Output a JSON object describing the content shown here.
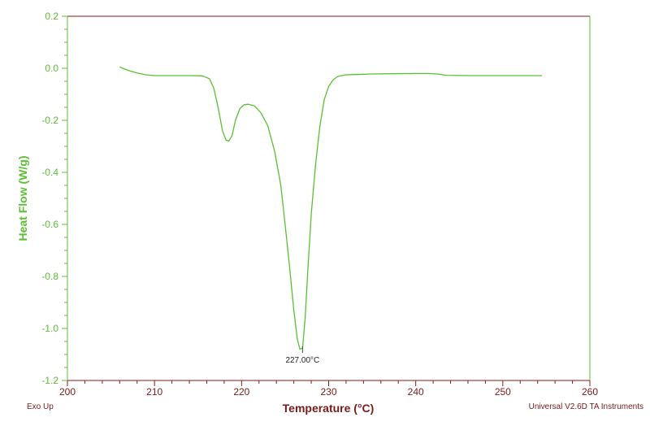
{
  "chart_data": {
    "type": "line",
    "xlabel": "Temperature (°C)",
    "ylabel": "Heat Flow (W/g)",
    "xlim": [
      200,
      260
    ],
    "ylim": [
      -1.2,
      0.2
    ],
    "x_ticks": [
      "200",
      "210",
      "220",
      "230",
      "240",
      "250",
      "260"
    ],
    "y_ticks": [
      "0.2",
      "0.0",
      "-0.2",
      "-0.4",
      "-0.6",
      "-0.8",
      "-1.0",
      "-1.2"
    ],
    "grid": false,
    "series": [
      {
        "color": "#5cbf35",
        "x": [
          206.0,
          206.5,
          207.0,
          208.0,
          209.0,
          210.0,
          212.0,
          214.0,
          215.5,
          216.3,
          216.8,
          217.3,
          217.8,
          218.2,
          218.5,
          218.9,
          219.3,
          219.8,
          220.3,
          220.8,
          221.5,
          222.2,
          223.0,
          223.8,
          224.5,
          225.0,
          225.5,
          226.0,
          226.4,
          226.7,
          227.0,
          227.3,
          227.6,
          228.0,
          228.5,
          229.0,
          229.5,
          230.0,
          230.5,
          231.0,
          231.5,
          232.0,
          233.0,
          235.0,
          237.0,
          240.0,
          241.5,
          242.5,
          243.5,
          246.0,
          250.0,
          254.5
        ],
        "y": [
          0.005,
          -0.002,
          -0.008,
          -0.018,
          -0.025,
          -0.028,
          -0.028,
          -0.028,
          -0.029,
          -0.04,
          -0.075,
          -0.15,
          -0.24,
          -0.275,
          -0.28,
          -0.26,
          -0.2,
          -0.155,
          -0.14,
          -0.138,
          -0.145,
          -0.17,
          -0.22,
          -0.32,
          -0.45,
          -0.6,
          -0.76,
          -0.93,
          -1.04,
          -1.08,
          -1.075,
          -0.96,
          -0.78,
          -0.56,
          -0.37,
          -0.22,
          -0.12,
          -0.07,
          -0.045,
          -0.032,
          -0.028,
          -0.025,
          -0.024,
          -0.022,
          -0.021,
          -0.02,
          -0.02,
          -0.022,
          -0.027,
          -0.028,
          -0.028,
          -0.028
        ]
      }
    ],
    "annotations": [
      {
        "text": "227.00°C",
        "x": 227.0,
        "y": -1.075
      }
    ],
    "footer_left": "Exo Up",
    "footer_right": "Universal V2.6D TA Instruments"
  }
}
